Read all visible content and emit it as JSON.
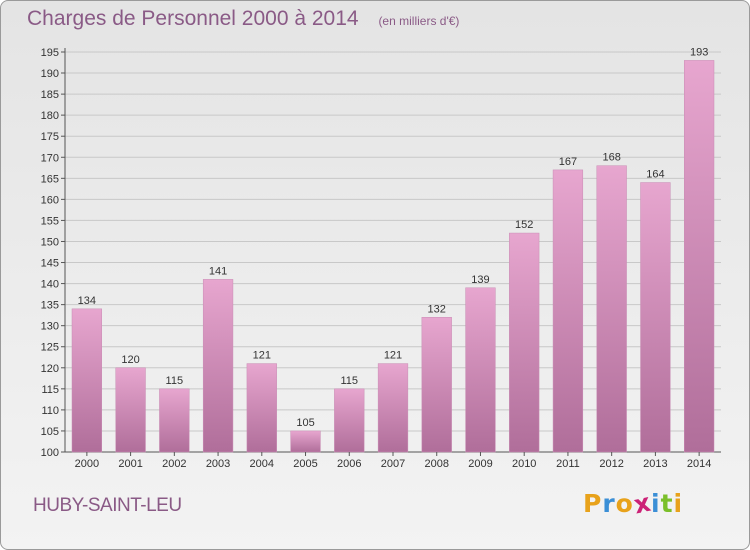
{
  "header": {
    "title": "Charges de Personnel 2000 à 2014",
    "subtitle": "(en milliers d'€)"
  },
  "footer": {
    "commune": "HUBY-SAINT-LEU",
    "logo_letters": [
      "P",
      "r",
      "o",
      "x",
      "i",
      "t",
      "i"
    ],
    "logo_colors": [
      "#e8a21b",
      "#3b8fd6",
      "#e8a21b",
      "#cc2277",
      "#3b8fd6",
      "#7bbf2a",
      "#e8a21b"
    ]
  },
  "colors": {
    "bar_light": "#e7a6cf",
    "bar_dark": "#b06e9a",
    "text": "#8a5a86",
    "axis_text": "#333333",
    "grid": "#c8c8c8"
  },
  "chart_data": {
    "type": "bar",
    "title": "Charges de Personnel 2000 à 2014",
    "subtitle": "(en milliers d'€)",
    "categories": [
      "2000",
      "2001",
      "2002",
      "2003",
      "2004",
      "2005",
      "2006",
      "2007",
      "2008",
      "2009",
      "2010",
      "2011",
      "2012",
      "2013",
      "2014"
    ],
    "values": [
      134,
      120,
      115,
      141,
      121,
      105,
      115,
      121,
      132,
      139,
      152,
      167,
      168,
      164,
      193
    ],
    "ylim": [
      100,
      195
    ],
    "ytick_step": 5,
    "grid": true,
    "xlabel": "",
    "ylabel": ""
  }
}
